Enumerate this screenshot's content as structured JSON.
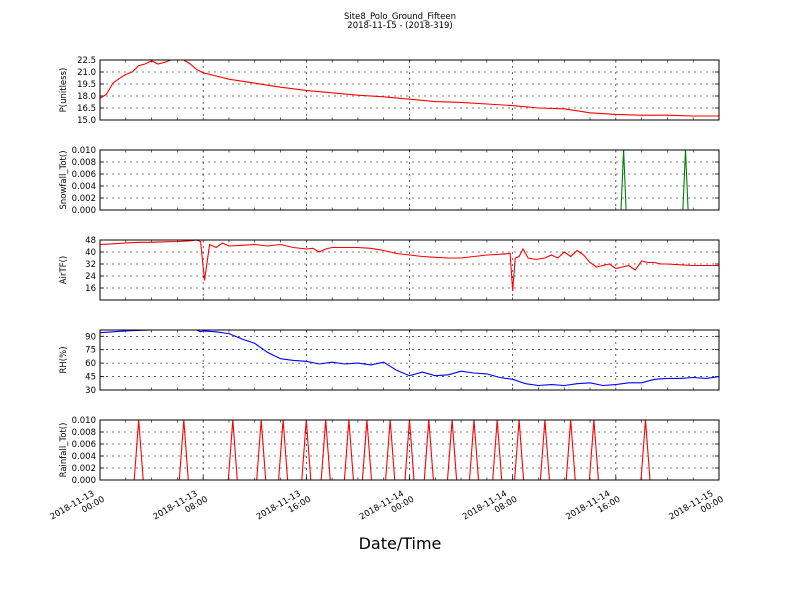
{
  "figure": {
    "title": "Site8_Polo_Ground_Fifteen",
    "subtitle": "2018-11-15 - (2018-319)",
    "xlabel": "Date/Time",
    "x_ticks": [
      {
        "h": 0,
        "label_date": "2018-11-13",
        "label_time": "00:00"
      },
      {
        "h": 8,
        "label_date": "2018-11-13",
        "label_time": "08:00"
      },
      {
        "h": 16,
        "label_date": "2018-11-13",
        "label_time": "16:00"
      },
      {
        "h": 24,
        "label_date": "2018-11-14",
        "label_time": "00:00"
      },
      {
        "h": 32,
        "label_date": "2018-11-14",
        "label_time": "08:00"
      },
      {
        "h": 40,
        "label_date": "2018-11-14",
        "label_time": "16:00"
      },
      {
        "h": 48,
        "label_date": "2018-11-15",
        "label_time": "00:00"
      }
    ],
    "x_range_hours": [
      0,
      48
    ]
  },
  "chart_data": [
    {
      "type": "line",
      "ylabel": "P(unitless)",
      "color": "#ff0000",
      "ylim": [
        15.0,
        22.5
      ],
      "yticks": [
        "22.5",
        "21.0",
        "19.5",
        "18.0",
        "16.5",
        "15.0"
      ],
      "ytick_values": [
        22.5,
        21.0,
        19.5,
        18.0,
        16.5,
        15.0
      ],
      "x": [
        0,
        0.5,
        1,
        1.5,
        2,
        2.5,
        3,
        3.5,
        4,
        4.5,
        5,
        5.5,
        6,
        6.5,
        7,
        7.5,
        8,
        9,
        10,
        12,
        14,
        16,
        18,
        20,
        22,
        24,
        26,
        28,
        30,
        32,
        34,
        36,
        38,
        40,
        42,
        44,
        46,
        48
      ],
      "y": [
        17.7,
        18.2,
        19.6,
        20.2,
        20.7,
        21.0,
        21.8,
        22.0,
        22.4,
        22.0,
        22.2,
        22.6,
        22.8,
        22.5,
        22.0,
        21.3,
        20.9,
        20.5,
        20.1,
        19.6,
        19.1,
        18.7,
        18.4,
        18.1,
        17.9,
        17.6,
        17.3,
        17.2,
        17.0,
        16.8,
        16.5,
        16.4,
        15.9,
        15.7,
        15.6,
        15.6,
        15.5,
        15.5
      ]
    },
    {
      "type": "line",
      "ylabel": "Snowfall_Tot()",
      "color": "#008000",
      "ylim": [
        0.0,
        0.01
      ],
      "yticks": [
        "0.010",
        "0.008",
        "0.006",
        "0.004",
        "0.002",
        "0.000"
      ],
      "ytick_values": [
        0.01,
        0.008,
        0.006,
        0.004,
        0.002,
        0.0
      ],
      "x": [
        0,
        40.4,
        40.6,
        40.8,
        45.2,
        45.4,
        45.6,
        48
      ],
      "y": [
        0,
        0,
        0.01,
        0,
        0,
        0.01,
        0,
        0
      ]
    },
    {
      "type": "line",
      "ylabel": "AirTF()",
      "color": "#ff0000",
      "ylim": [
        8,
        48
      ],
      "yticks": [
        "48",
        "40",
        "32",
        "24",
        "16"
      ],
      "ytick_values": [
        48,
        40,
        32,
        24,
        16
      ],
      "x": [
        0,
        1,
        2,
        3,
        4,
        5,
        6,
        7,
        7.5,
        7.8,
        8.1,
        8.5,
        9,
        9.5,
        10,
        11,
        12,
        13,
        14,
        15,
        16,
        16.5,
        17,
        17.5,
        18,
        19,
        20,
        21,
        22,
        23,
        24,
        25,
        26,
        27,
        28,
        29,
        30,
        31,
        31.8,
        32.0,
        32.2,
        32.5,
        32.8,
        33.2,
        33.8,
        34.5,
        35,
        35.5,
        36,
        36.5,
        37,
        37.5,
        38,
        38.5,
        39,
        39.5,
        40,
        40.5,
        41,
        41.5,
        42,
        42.5,
        43,
        43.5,
        44,
        45,
        46,
        47,
        48
      ],
      "y": [
        45,
        45.5,
        46,
        46.5,
        46.5,
        46.8,
        47,
        47.5,
        48,
        47,
        21,
        45,
        43,
        46,
        44,
        44.5,
        45,
        44,
        45,
        43,
        42,
        42.5,
        40,
        42,
        43,
        43,
        43,
        42.5,
        41,
        39,
        38,
        37,
        36.5,
        36,
        36,
        37,
        38,
        38.5,
        39,
        14,
        36,
        37,
        42,
        36,
        35,
        36,
        38,
        36,
        40,
        37,
        41,
        38,
        33,
        30,
        31,
        32,
        29,
        30,
        31,
        28,
        34,
        33,
        33,
        32,
        32,
        31.5,
        31,
        31,
        31
      ]
    },
    {
      "type": "line",
      "ylabel": "RH(%)",
      "color": "#0000ff",
      "ylim": [
        30,
        97
      ],
      "yticks": [
        "90",
        "75",
        "60",
        "45",
        "30"
      ],
      "ytick_values": [
        90,
        75,
        60,
        45,
        30
      ],
      "x": [
        0,
        2,
        4,
        6,
        7.5,
        7.8,
        8,
        9,
        10,
        11,
        12,
        13,
        14,
        15,
        16,
        17,
        18,
        19,
        20,
        21,
        22,
        23,
        24,
        25,
        26,
        27,
        28,
        29,
        30,
        31,
        32,
        33,
        34,
        35,
        36,
        37,
        38,
        39,
        40,
        41,
        42,
        43,
        44,
        45,
        46,
        47,
        48
      ],
      "y": [
        94,
        96,
        97,
        97,
        97,
        95,
        96,
        95,
        93,
        87,
        82,
        72,
        65,
        63,
        62,
        59,
        61,
        59,
        60,
        58,
        61,
        52,
        46,
        50,
        46,
        47,
        51,
        49,
        48,
        44,
        42,
        37,
        35,
        36,
        35,
        37,
        38,
        35,
        36,
        38,
        38,
        42,
        43,
        43,
        44,
        43,
        45
      ]
    },
    {
      "type": "line",
      "ylabel": "Rainfall_Tot()",
      "color": "#ff0000",
      "ylim": [
        0.0,
        0.01
      ],
      "yticks": [
        "0.010",
        "0.008",
        "0.006",
        "0.004",
        "0.002",
        "0.000"
      ],
      "ytick_values": [
        0.01,
        0.008,
        0.006,
        0.004,
        0.002,
        0.0
      ],
      "spike_height": 0.01,
      "spike_hours": [
        3.0,
        6.5,
        10.3,
        12.5,
        14.2,
        16.0,
        17.5,
        19.3,
        20.7,
        22.5,
        24.0,
        25.5,
        27.3,
        29.0,
        30.8,
        32.5,
        34.5,
        36.5,
        38.3,
        42.3
      ]
    }
  ]
}
